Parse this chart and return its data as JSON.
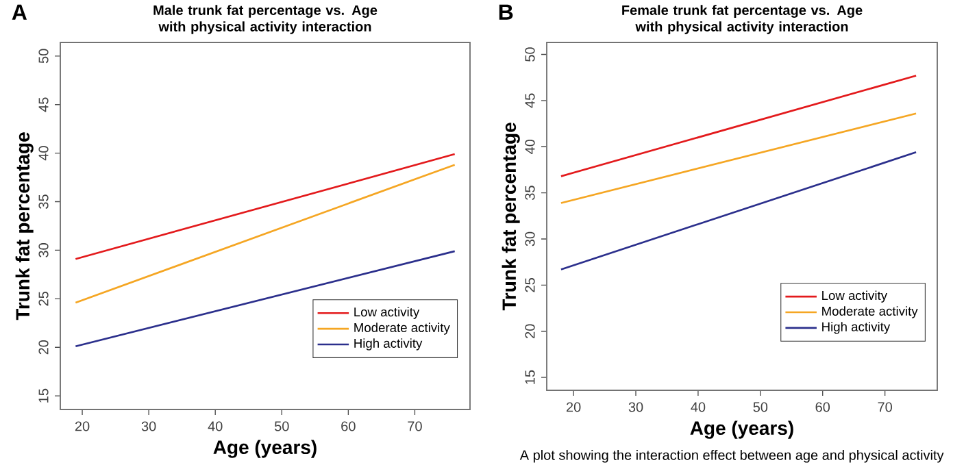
{
  "chart_data": [
    {
      "type": "line",
      "title": "Male trunk fat percentage vs. Age with physical activity interaction",
      "xlabel": "Age (years)",
      "ylabel": "Trunk fat percentage",
      "annotations": [
        "A"
      ],
      "xlim": [
        16.7,
        78.3
      ],
      "ylim": [
        13.6,
        51.4
      ],
      "xticks": [
        20,
        30,
        40,
        50,
        60,
        70
      ],
      "yticks": [
        15,
        20,
        25,
        30,
        35,
        40,
        45,
        50
      ],
      "legend": "bottom right",
      "grid": false,
      "marker": "none",
      "line_style": "solid",
      "x": [
        19,
        76
      ],
      "series": [
        {
          "name": "Low activity",
          "color": "#e31a1c",
          "values": [
            29.1,
            39.9
          ]
        },
        {
          "name": "Moderate activity",
          "color": "#f5a623",
          "values": [
            24.6,
            38.8
          ]
        },
        {
          "name": "High activity",
          "color": "#2b2f8c",
          "values": [
            20.1,
            29.9
          ]
        }
      ]
    },
    {
      "type": "line",
      "title": "Female trunk fat percentage vs. Age with physical activity interaction",
      "xlabel": "Age (years)",
      "ylabel": "Trunk fat percentage",
      "annotations": [
        "B",
        "A plot showing the interaction effect between age and physical activity"
      ],
      "xlim": [
        15.7,
        78.4
      ],
      "ylim": [
        13.6,
        51.3
      ],
      "xticks": [
        20,
        30,
        40,
        50,
        60,
        70
      ],
      "yticks": [
        15,
        20,
        25,
        30,
        35,
        40,
        45,
        50
      ],
      "legend": "bottom right",
      "grid": false,
      "marker": "none",
      "line_style": "solid",
      "x": [
        18,
        75
      ],
      "series": [
        {
          "name": "Low activity",
          "color": "#e31a1c",
          "values": [
            36.8,
            47.7
          ]
        },
        {
          "name": "Moderate activity",
          "color": "#f5a623",
          "values": [
            33.9,
            43.6
          ]
        },
        {
          "name": "High activity",
          "color": "#2b2f8c",
          "values": [
            26.7,
            39.4
          ]
        }
      ]
    }
  ]
}
